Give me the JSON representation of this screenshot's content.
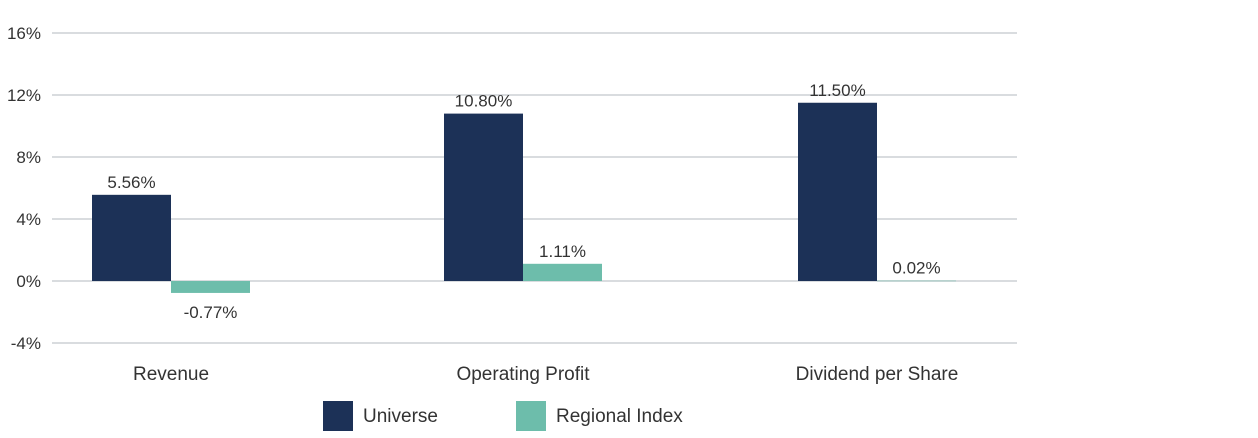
{
  "chart_data": {
    "type": "bar",
    "categories": [
      "Revenue",
      "Operating Profit",
      "Dividend per Share"
    ],
    "series": [
      {
        "name": "Universe",
        "values": [
          5.56,
          10.8,
          11.5
        ],
        "labels": [
          "5.56%",
          "10.80%",
          "11.50%"
        ],
        "color": "#1c3157"
      },
      {
        "name": "Regional Index",
        "values": [
          -0.77,
          1.11,
          0.02
        ],
        "labels": [
          "-0.77%",
          "1.11%",
          "0.02%"
        ],
        "color": "#6dbdab"
      }
    ],
    "ylim": [
      -4,
      16
    ],
    "yticks": [
      16,
      12,
      8,
      4,
      0,
      -4
    ],
    "ytick_labels": [
      "16%",
      "12%",
      "8%",
      "4%",
      "0%",
      "-4%"
    ],
    "grid": true,
    "legend_position": "bottom",
    "title": "",
    "xlabel": "",
    "ylabel": "",
    "gridline_color": "#d9dcdf"
  }
}
